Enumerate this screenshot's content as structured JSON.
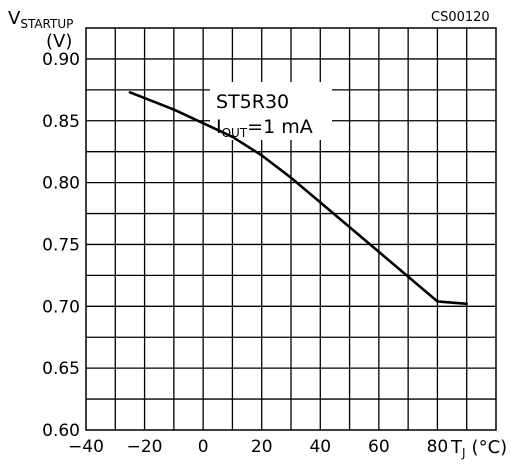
{
  "chart_data": {
    "type": "line",
    "figure_code": "CS00120",
    "ylabel": {
      "main": "V",
      "subscript": "STARTUP",
      "unit": "(V)"
    },
    "xlabel": {
      "main": "T",
      "subscript": "J",
      "unit": "(°C)"
    },
    "xlim": [
      -40,
      100
    ],
    "ylim": [
      0.6,
      0.925
    ],
    "x_ticks": [
      -40,
      -20,
      0,
      20,
      40,
      60,
      80
    ],
    "x_tick_labels": [
      "−40",
      "−20",
      "0",
      "20",
      "40",
      "60",
      "80"
    ],
    "y_ticks": [
      0.6,
      0.65,
      0.7,
      0.75,
      0.8,
      0.85,
      0.9
    ],
    "y_tick_labels": [
      "0.60",
      "0.65",
      "0.70",
      "0.75",
      "0.80",
      "0.85",
      "0.90"
    ],
    "grid": true,
    "annotation": {
      "part": "ST5R30",
      "cond_main": "I",
      "cond_sub": "OUT",
      "cond_value": "=1 mA"
    },
    "series": [
      {
        "x": [
          -25,
          -10,
          0,
          10,
          20,
          30,
          40,
          50,
          60,
          70,
          80,
          90
        ],
        "y": [
          0.873,
          0.859,
          0.848,
          0.837,
          0.822,
          0.804,
          0.784,
          0.764,
          0.744,
          0.724,
          0.704,
          0.702
        ]
      }
    ]
  }
}
